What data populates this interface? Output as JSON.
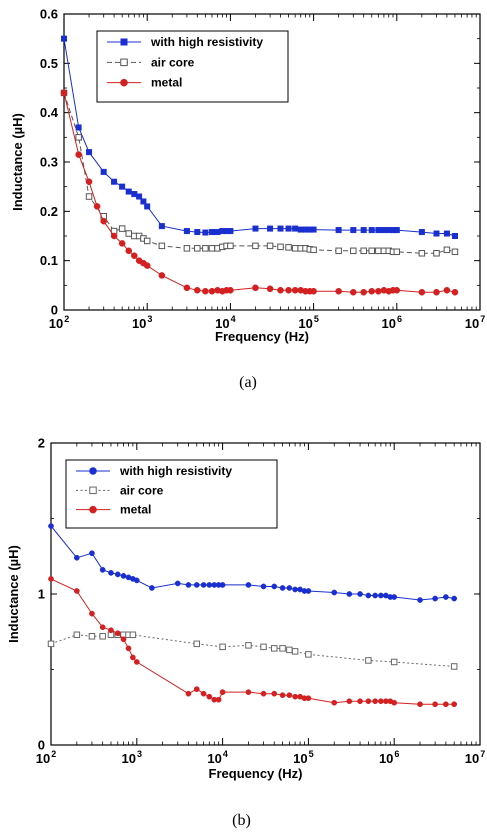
{
  "chart_data": [
    {
      "type": "line",
      "caption": "(a)",
      "xlabel": "Frequency (Hz)",
      "ylabel": "Inductance (µH)",
      "xscale": "log",
      "xlim": [
        100,
        10000000
      ],
      "ylim": [
        0,
        0.6
      ],
      "yticks": [
        "0",
        "0.1",
        "0.2",
        "0.3",
        "0.4",
        "0.5",
        "0.6"
      ],
      "yticks_values": [
        0,
        0.1,
        0.2,
        0.3,
        0.4,
        0.5,
        0.6
      ],
      "xticks_base": "10",
      "xticks_exp": [
        "2",
        "3",
        "4",
        "5",
        "6",
        "7"
      ],
      "grid": false,
      "legend_position": "top-left",
      "series": [
        {
          "name": "with high resistivity",
          "color": "#1a2fd0",
          "marker": "filled-square",
          "line": "solid",
          "x": [
            100,
            150,
            200,
            300,
            400,
            500,
            600,
            700,
            800,
            900,
            1000,
            1500,
            3000,
            4000,
            5000,
            6000,
            7000,
            8000,
            9000,
            10000,
            20000,
            30000,
            40000,
            50000,
            60000,
            70000,
            80000,
            90000,
            100000,
            200000,
            300000,
            400000,
            500000,
            600000,
            700000,
            800000,
            900000,
            1000000,
            2000000,
            3000000,
            4000000,
            5000000
          ],
          "y": [
            0.55,
            0.37,
            0.32,
            0.28,
            0.26,
            0.25,
            0.24,
            0.235,
            0.23,
            0.22,
            0.21,
            0.17,
            0.16,
            0.158,
            0.157,
            0.158,
            0.158,
            0.16,
            0.16,
            0.16,
            0.165,
            0.165,
            0.165,
            0.165,
            0.165,
            0.163,
            0.163,
            0.163,
            0.163,
            0.162,
            0.162,
            0.162,
            0.162,
            0.162,
            0.162,
            0.162,
            0.162,
            0.162,
            0.158,
            0.155,
            0.155,
            0.15
          ]
        },
        {
          "name": "air core",
          "color": "#555555",
          "marker": "open-square",
          "line": "dashed",
          "x": [
            100,
            150,
            200,
            300,
            400,
            500,
            600,
            700,
            800,
            900,
            1000,
            1500,
            3000,
            4000,
            5000,
            6000,
            7000,
            8000,
            9000,
            10000,
            20000,
            30000,
            40000,
            50000,
            60000,
            70000,
            80000,
            90000,
            100000,
            200000,
            300000,
            400000,
            500000,
            600000,
            700000,
            800000,
            900000,
            1000000,
            2000000,
            3000000,
            4000000,
            5000000
          ],
          "y": [
            0.44,
            0.35,
            0.23,
            0.19,
            0.16,
            0.165,
            0.155,
            0.15,
            0.15,
            0.145,
            0.14,
            0.13,
            0.125,
            0.125,
            0.125,
            0.125,
            0.125,
            0.128,
            0.13,
            0.13,
            0.13,
            0.13,
            0.128,
            0.127,
            0.125,
            0.125,
            0.125,
            0.123,
            0.122,
            0.12,
            0.12,
            0.12,
            0.12,
            0.12,
            0.12,
            0.12,
            0.118,
            0.118,
            0.115,
            0.115,
            0.122,
            0.118
          ]
        },
        {
          "name": "metal",
          "color": "#d42020",
          "marker": "filled-circle",
          "line": "solid",
          "x": [
            100,
            150,
            200,
            250,
            300,
            400,
            500,
            600,
            700,
            800,
            900,
            1000,
            1500,
            3000,
            4000,
            5000,
            6000,
            7000,
            8000,
            9000,
            10000,
            20000,
            30000,
            40000,
            50000,
            60000,
            70000,
            80000,
            90000,
            100000,
            200000,
            300000,
            400000,
            500000,
            600000,
            700000,
            800000,
            900000,
            1000000,
            2000000,
            3000000,
            4000000,
            5000000
          ],
          "y": [
            0.44,
            0.315,
            0.26,
            0.21,
            0.18,
            0.15,
            0.135,
            0.12,
            0.11,
            0.1,
            0.095,
            0.09,
            0.07,
            0.045,
            0.04,
            0.038,
            0.038,
            0.04,
            0.038,
            0.04,
            0.04,
            0.045,
            0.043,
            0.04,
            0.04,
            0.04,
            0.04,
            0.038,
            0.038,
            0.038,
            0.038,
            0.036,
            0.036,
            0.038,
            0.038,
            0.04,
            0.038,
            0.04,
            0.04,
            0.036,
            0.036,
            0.04,
            0.036
          ]
        }
      ]
    },
    {
      "type": "line",
      "caption": "(b)",
      "xlabel": "Frequency (Hz)",
      "ylabel": "Inductance (µH)",
      "xscale": "log",
      "xlim": [
        100,
        10000000
      ],
      "ylim": [
        0,
        2
      ],
      "yticks": [
        "0",
        "1",
        "2"
      ],
      "yticks_values": [
        0,
        1,
        2
      ],
      "xticks_base": "10",
      "xticks_exp": [
        "2",
        "3",
        "4",
        "5",
        "6",
        "7"
      ],
      "grid": false,
      "legend_position": "top-left",
      "series": [
        {
          "name": "with high resistivity",
          "color": "#1a2fd0",
          "marker": "filled-circle",
          "line": "solid",
          "x": [
            100,
            200,
            300,
            400,
            500,
            600,
            700,
            800,
            900,
            1000,
            1500,
            3000,
            4000,
            5000,
            6000,
            7000,
            8000,
            9000,
            10000,
            20000,
            30000,
            40000,
            50000,
            60000,
            70000,
            80000,
            90000,
            100000,
            200000,
            300000,
            400000,
            500000,
            600000,
            700000,
            800000,
            900000,
            1000000,
            2000000,
            3000000,
            4000000,
            5000000
          ],
          "y": [
            1.45,
            1.24,
            1.27,
            1.16,
            1.14,
            1.13,
            1.12,
            1.11,
            1.1,
            1.09,
            1.04,
            1.07,
            1.06,
            1.06,
            1.06,
            1.06,
            1.06,
            1.06,
            1.06,
            1.06,
            1.05,
            1.05,
            1.04,
            1.04,
            1.03,
            1.03,
            1.02,
            1.02,
            1.01,
            1.0,
            1.0,
            0.99,
            0.99,
            0.99,
            0.99,
            0.98,
            0.98,
            0.96,
            0.97,
            0.98,
            0.97
          ]
        },
        {
          "name": "air core",
          "color": "#666666",
          "marker": "open-square",
          "line": "dotted",
          "x": [
            100,
            200,
            300,
            400,
            500,
            600,
            700,
            800,
            900,
            5000,
            10000,
            20000,
            30000,
            40000,
            50000,
            60000,
            70000,
            100000,
            500000,
            1000000,
            5000000
          ],
          "y": [
            0.67,
            0.73,
            0.72,
            0.72,
            0.73,
            0.73,
            0.73,
            0.73,
            0.73,
            0.67,
            0.65,
            0.66,
            0.65,
            0.64,
            0.64,
            0.63,
            0.62,
            0.6,
            0.56,
            0.55,
            0.52
          ]
        },
        {
          "name": "metal",
          "color": "#d42020",
          "marker": "filled-circle",
          "line": "solid",
          "x": [
            100,
            200,
            300,
            400,
            500,
            600,
            700,
            800,
            900,
            1000,
            4000,
            5000,
            6000,
            7000,
            8000,
            9000,
            10000,
            20000,
            30000,
            40000,
            50000,
            60000,
            70000,
            80000,
            90000,
            100000,
            200000,
            300000,
            400000,
            500000,
            600000,
            700000,
            800000,
            900000,
            1000000,
            2000000,
            3000000,
            4000000,
            5000000
          ],
          "y": [
            1.1,
            1.02,
            0.87,
            0.78,
            0.76,
            0.74,
            0.7,
            0.64,
            0.58,
            0.55,
            0.34,
            0.37,
            0.34,
            0.32,
            0.3,
            0.3,
            0.35,
            0.35,
            0.34,
            0.34,
            0.33,
            0.33,
            0.32,
            0.32,
            0.31,
            0.31,
            0.28,
            0.29,
            0.29,
            0.29,
            0.29,
            0.29,
            0.29,
            0.29,
            0.28,
            0.27,
            0.27,
            0.27,
            0.27
          ]
        }
      ]
    }
  ]
}
